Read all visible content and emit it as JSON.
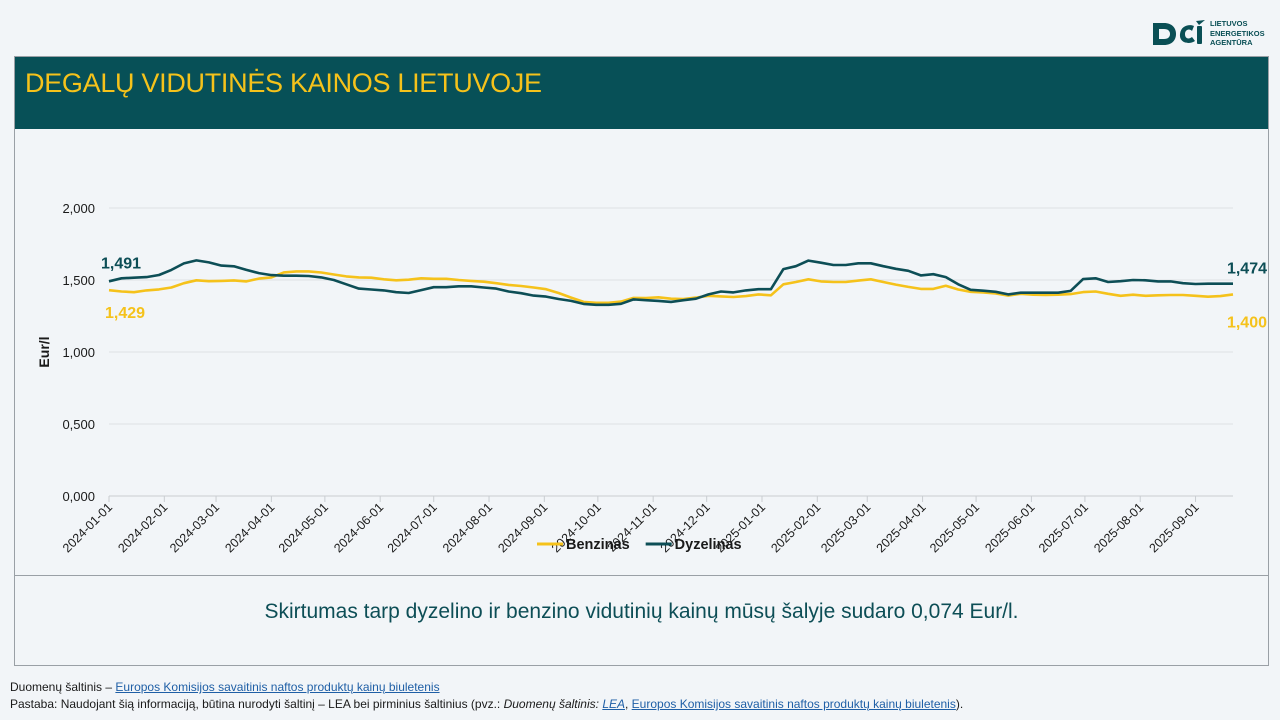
{
  "logo": {
    "lines": [
      "LIETUVOS",
      "ENERGETIKOS",
      "AGENTŪRA"
    ],
    "color": "#0a4f55"
  },
  "header": {
    "title": "DEGALŲ VIDUTINĖS KAINOS LIETUVOJE",
    "bg_color": "#075057",
    "title_color": "#f5c21b"
  },
  "chart_data": {
    "type": "line",
    "title": "",
    "xlabel": "",
    "ylabel": "Eur/l",
    "ylim": [
      0,
      2000
    ],
    "yticks": [
      "0,000",
      "0,500",
      "1,000",
      "1,500",
      "2,000"
    ],
    "grid": true,
    "legend_position": "bottom",
    "x_ticks": [
      "2024-01-01",
      "2024-02-01",
      "2024-03-01",
      "2024-04-01",
      "2024-05-01",
      "2024-06-01",
      "2024-07-01",
      "2024-08-01",
      "2024-09-01",
      "2024-10-01",
      "2024-11-01",
      "2024-12-01",
      "2025-01-01",
      "2025-02-01",
      "2025-03-01",
      "2025-04-01",
      "2025-05-01",
      "2025-06-01",
      "2025-07-01",
      "2025-08-01",
      "2025-09-01"
    ],
    "x_start": "2024-01-01",
    "x_end": "2025-09-22",
    "series": [
      {
        "name": "Benzinas",
        "color": "#f5c21b",
        "end_label": "1,400",
        "start_label": "1,429",
        "points": [
          [
            "2024-01-01",
            1429
          ],
          [
            "2024-01-08",
            1420
          ],
          [
            "2024-01-15",
            1415
          ],
          [
            "2024-01-22",
            1428
          ],
          [
            "2024-01-29",
            1435
          ],
          [
            "2024-02-05",
            1448
          ],
          [
            "2024-02-12",
            1478
          ],
          [
            "2024-02-19",
            1498
          ],
          [
            "2024-02-26",
            1492
          ],
          [
            "2024-03-04",
            1494
          ],
          [
            "2024-03-11",
            1497
          ],
          [
            "2024-03-18",
            1490
          ],
          [
            "2024-03-25",
            1510
          ],
          [
            "2024-04-01",
            1518
          ],
          [
            "2024-04-08",
            1553
          ],
          [
            "2024-04-15",
            1560
          ],
          [
            "2024-04-22",
            1560
          ],
          [
            "2024-04-29",
            1552
          ],
          [
            "2024-05-06",
            1538
          ],
          [
            "2024-05-13",
            1525
          ],
          [
            "2024-05-20",
            1518
          ],
          [
            "2024-05-27",
            1516
          ],
          [
            "2024-06-03",
            1505
          ],
          [
            "2024-06-10",
            1498
          ],
          [
            "2024-06-17",
            1502
          ],
          [
            "2024-06-24",
            1512
          ],
          [
            "2024-07-01",
            1508
          ],
          [
            "2024-07-08",
            1508
          ],
          [
            "2024-07-15",
            1500
          ],
          [
            "2024-07-22",
            1494
          ],
          [
            "2024-07-29",
            1488
          ],
          [
            "2024-08-05",
            1478
          ],
          [
            "2024-08-12",
            1466
          ],
          [
            "2024-08-19",
            1458
          ],
          [
            "2024-08-26",
            1448
          ],
          [
            "2024-09-02",
            1436
          ],
          [
            "2024-09-09",
            1410
          ],
          [
            "2024-09-16",
            1378
          ],
          [
            "2024-09-23",
            1348
          ],
          [
            "2024-09-30",
            1342
          ],
          [
            "2024-10-07",
            1342
          ],
          [
            "2024-10-14",
            1350
          ],
          [
            "2024-10-21",
            1376
          ],
          [
            "2024-10-28",
            1375
          ],
          [
            "2024-11-04",
            1380
          ],
          [
            "2024-11-11",
            1370
          ],
          [
            "2024-11-18",
            1368
          ],
          [
            "2024-11-25",
            1378
          ],
          [
            "2024-12-02",
            1390
          ],
          [
            "2024-12-09",
            1386
          ],
          [
            "2024-12-16",
            1382
          ],
          [
            "2024-12-23",
            1388
          ],
          [
            "2024-12-30",
            1400
          ],
          [
            "2025-01-06",
            1394
          ],
          [
            "2025-01-13",
            1470
          ],
          [
            "2025-01-20",
            1486
          ],
          [
            "2025-01-27",
            1505
          ],
          [
            "2025-02-03",
            1490
          ],
          [
            "2025-02-10",
            1486
          ],
          [
            "2025-02-17",
            1486
          ],
          [
            "2025-02-24",
            1496
          ],
          [
            "2025-03-03",
            1505
          ],
          [
            "2025-03-10",
            1486
          ],
          [
            "2025-03-17",
            1468
          ],
          [
            "2025-03-24",
            1452
          ],
          [
            "2025-03-31",
            1438
          ],
          [
            "2025-04-07",
            1438
          ],
          [
            "2025-04-14",
            1460
          ],
          [
            "2025-04-21",
            1434
          ],
          [
            "2025-04-28",
            1418
          ],
          [
            "2025-05-05",
            1414
          ],
          [
            "2025-05-12",
            1406
          ],
          [
            "2025-05-19",
            1392
          ],
          [
            "2025-05-26",
            1404
          ],
          [
            "2025-06-02",
            1398
          ],
          [
            "2025-06-09",
            1396
          ],
          [
            "2025-06-16",
            1398
          ],
          [
            "2025-06-23",
            1402
          ],
          [
            "2025-06-30",
            1416
          ],
          [
            "2025-07-07",
            1420
          ],
          [
            "2025-07-14",
            1404
          ],
          [
            "2025-07-21",
            1390
          ],
          [
            "2025-07-28",
            1398
          ],
          [
            "2025-08-04",
            1390
          ],
          [
            "2025-08-11",
            1394
          ],
          [
            "2025-08-18",
            1396
          ],
          [
            "2025-08-25",
            1396
          ],
          [
            "2025-09-01",
            1390
          ],
          [
            "2025-09-08",
            1384
          ],
          [
            "2025-09-15",
            1388
          ],
          [
            "2025-09-22",
            1400
          ]
        ]
      },
      {
        "name": "Dyzelinas",
        "color": "#0d4e56",
        "end_label": "1,474",
        "start_label": "1,491",
        "points": [
          [
            "2024-01-01",
            1491
          ],
          [
            "2024-01-08",
            1512
          ],
          [
            "2024-01-15",
            1516
          ],
          [
            "2024-01-22",
            1520
          ],
          [
            "2024-01-29",
            1535
          ],
          [
            "2024-02-05",
            1570
          ],
          [
            "2024-02-12",
            1615
          ],
          [
            "2024-02-19",
            1636
          ],
          [
            "2024-02-26",
            1622
          ],
          [
            "2024-03-04",
            1600
          ],
          [
            "2024-03-11",
            1595
          ],
          [
            "2024-03-18",
            1570
          ],
          [
            "2024-03-25",
            1548
          ],
          [
            "2024-04-01",
            1534
          ],
          [
            "2024-04-08",
            1530
          ],
          [
            "2024-04-15",
            1530
          ],
          [
            "2024-04-22",
            1528
          ],
          [
            "2024-04-29",
            1518
          ],
          [
            "2024-05-06",
            1500
          ],
          [
            "2024-05-13",
            1470
          ],
          [
            "2024-05-20",
            1440
          ],
          [
            "2024-05-27",
            1434
          ],
          [
            "2024-06-03",
            1428
          ],
          [
            "2024-06-10",
            1415
          ],
          [
            "2024-06-17",
            1410
          ],
          [
            "2024-06-24",
            1430
          ],
          [
            "2024-07-01",
            1450
          ],
          [
            "2024-07-08",
            1450
          ],
          [
            "2024-07-15",
            1456
          ],
          [
            "2024-07-22",
            1456
          ],
          [
            "2024-07-29",
            1448
          ],
          [
            "2024-08-05",
            1440
          ],
          [
            "2024-08-12",
            1420
          ],
          [
            "2024-08-19",
            1408
          ],
          [
            "2024-08-26",
            1392
          ],
          [
            "2024-09-02",
            1385
          ],
          [
            "2024-09-09",
            1368
          ],
          [
            "2024-09-16",
            1355
          ],
          [
            "2024-09-23",
            1334
          ],
          [
            "2024-09-30",
            1328
          ],
          [
            "2024-10-07",
            1328
          ],
          [
            "2024-10-14",
            1335
          ],
          [
            "2024-10-21",
            1365
          ],
          [
            "2024-10-28",
            1360
          ],
          [
            "2024-11-04",
            1355
          ],
          [
            "2024-11-11",
            1348
          ],
          [
            "2024-11-18",
            1360
          ],
          [
            "2024-11-25",
            1370
          ],
          [
            "2024-12-02",
            1400
          ],
          [
            "2024-12-09",
            1420
          ],
          [
            "2024-12-16",
            1414
          ],
          [
            "2024-12-23",
            1428
          ],
          [
            "2024-12-30",
            1436
          ],
          [
            "2025-01-06",
            1436
          ],
          [
            "2025-01-13",
            1576
          ],
          [
            "2025-01-20",
            1596
          ],
          [
            "2025-01-27",
            1635
          ],
          [
            "2025-02-03",
            1620
          ],
          [
            "2025-02-10",
            1604
          ],
          [
            "2025-02-17",
            1604
          ],
          [
            "2025-02-24",
            1616
          ],
          [
            "2025-03-03",
            1616
          ],
          [
            "2025-03-10",
            1596
          ],
          [
            "2025-03-17",
            1578
          ],
          [
            "2025-03-24",
            1564
          ],
          [
            "2025-03-31",
            1532
          ],
          [
            "2025-04-07",
            1540
          ],
          [
            "2025-04-14",
            1520
          ],
          [
            "2025-04-21",
            1470
          ],
          [
            "2025-04-28",
            1432
          ],
          [
            "2025-05-05",
            1426
          ],
          [
            "2025-05-12",
            1418
          ],
          [
            "2025-05-19",
            1400
          ],
          [
            "2025-05-26",
            1412
          ],
          [
            "2025-06-02",
            1412
          ],
          [
            "2025-06-09",
            1412
          ],
          [
            "2025-06-16",
            1412
          ],
          [
            "2025-06-23",
            1424
          ],
          [
            "2025-06-30",
            1506
          ],
          [
            "2025-07-07",
            1512
          ],
          [
            "2025-07-14",
            1486
          ],
          [
            "2025-07-21",
            1492
          ],
          [
            "2025-07-28",
            1500
          ],
          [
            "2025-08-04",
            1498
          ],
          [
            "2025-08-11",
            1490
          ],
          [
            "2025-08-18",
            1490
          ],
          [
            "2025-08-25",
            1478
          ],
          [
            "2025-09-01",
            1472
          ],
          [
            "2025-09-08",
            1474
          ],
          [
            "2025-09-15",
            1474
          ],
          [
            "2025-09-22",
            1474
          ]
        ]
      }
    ]
  },
  "summary": "Skirtumas tarp dyzelino ir benzino vidutinių kainų mūsų šalyje sudaro 0,074 Eur/l.",
  "footer": {
    "source_prefix": "Duomenų šaltinis – ",
    "source_link": "Europos Komisijos savaitinis naftos produktų kainų biuletenis",
    "note_prefix": "Pastaba: Naudojant šią informaciją, būtina nurodyti šaltinį – LEA bei pirminius šaltinius (pvz.: ",
    "note_italic": "Duomenų šaltinis: ",
    "note_lea": "LEA",
    "note_sep": ", ",
    "note_link": "Europos Komisijos savaitinis naftos produktų kainų biuletenis",
    "note_suffix": ")."
  }
}
